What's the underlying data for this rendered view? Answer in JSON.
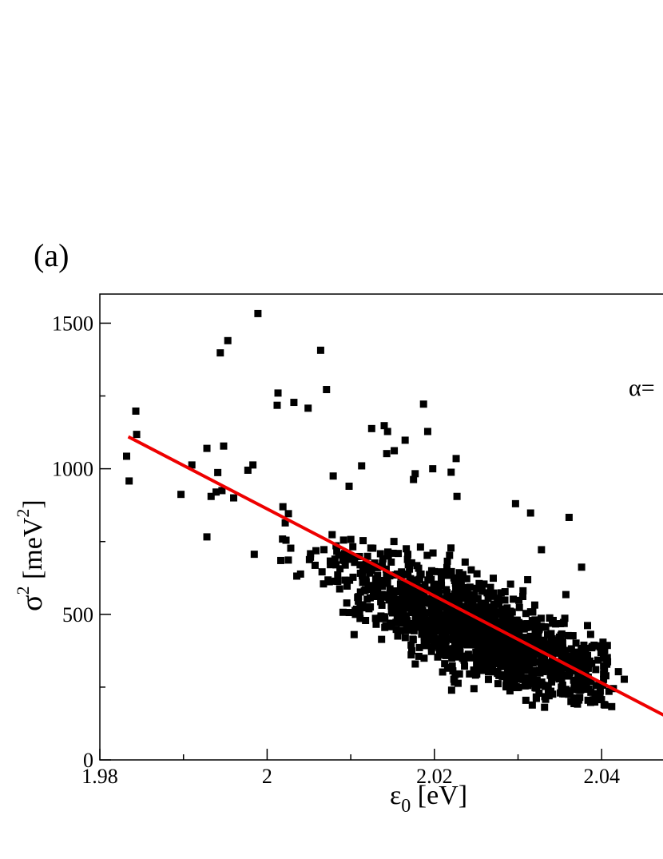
{
  "chart_data": {
    "type": "scatter",
    "panel_label": "(a)",
    "annotation": "α=",
    "xlabel": {
      "base": "ε",
      "sub": "0",
      "rest": " [eV]"
    },
    "ylabel": {
      "base": "σ",
      "sup": "2",
      "rest": " [meV",
      "unit_sup": "2",
      "close": "]"
    },
    "xlim": [
      1.98,
      2.048
    ],
    "ylim": [
      0,
      1600
    ],
    "xticks": [
      {
        "value": 1.98,
        "label": "1.98"
      },
      {
        "value": 2.0,
        "label": "2"
      },
      {
        "value": 2.02,
        "label": "2.02"
      },
      {
        "value": 2.04,
        "label": "2.04"
      }
    ],
    "yticks": [
      {
        "value": 0,
        "label": "0"
      },
      {
        "value": 500,
        "label": "500"
      },
      {
        "value": 1000,
        "label": "1000"
      },
      {
        "value": 1500,
        "label": "1500"
      }
    ],
    "fit_line": {
      "color": "#ee0000",
      "x": [
        1.9834,
        2.048
      ],
      "y": [
        1110,
        145
      ]
    },
    "marker_color": "#000000",
    "outliers": [
      [
        1.9989,
        1533
      ],
      [
        1.9953,
        1440
      ],
      [
        1.9944,
        1398
      ],
      [
        2.0064,
        1407
      ],
      [
        2.0071,
        1272
      ],
      [
        2.0013,
        1260
      ],
      [
        2.0032,
        1228
      ],
      [
        2.0012,
        1218
      ],
      [
        2.0049,
        1208
      ],
      [
        2.0187,
        1222
      ],
      [
        2.014,
        1148
      ],
      [
        2.0125,
        1138
      ],
      [
        2.0144,
        1128
      ],
      [
        2.0192,
        1128
      ],
      [
        2.0143,
        1052
      ],
      [
        2.0152,
        1062
      ],
      [
        2.0165,
        1098
      ],
      [
        1.9843,
        1198
      ],
      [
        1.9844,
        1118
      ],
      [
        1.9832,
        1043
      ],
      [
        1.9835,
        958
      ],
      [
        1.9928,
        1070
      ],
      [
        1.9948,
        1078
      ],
      [
        1.9983,
        1013
      ],
      [
        1.9977,
        995
      ],
      [
        1.991,
        1013
      ],
      [
        1.9897,
        912
      ],
      [
        1.9941,
        987
      ],
      [
        1.9933,
        905
      ],
      [
        1.9946,
        925
      ],
      [
        1.9939,
        920
      ],
      [
        1.996,
        900
      ],
      [
        1.9928,
        766
      ],
      [
        2.0113,
        1010
      ],
      [
        2.0198,
        1000
      ],
      [
        2.0226,
        1035
      ],
      [
        2.0177,
        983
      ],
      [
        2.0175,
        963
      ],
      [
        2.0227,
        905
      ],
      [
        2.022,
        988
      ],
      [
        2.0297,
        880
      ],
      [
        2.0315,
        848
      ],
      [
        2.0361,
        833
      ],
      [
        2.0328,
        722
      ],
      [
        2.0376,
        662
      ],
      [
        2.0412,
        183
      ],
      [
        2.0427,
        277
      ],
      [
        2.042,
        303
      ],
      [
        2.0414,
        245
      ],
      [
        2.0398,
        217
      ],
      [
        2.0392,
        228
      ],
      [
        2.0098,
        940
      ],
      [
        2.0079,
        975
      ]
    ],
    "cluster": {
      "count": 1500,
      "seed": 7,
      "x_range": [
        1.998,
        2.041
      ],
      "trend": {
        "x0": 2.0,
        "y0": 740,
        "slope_per_eV": -11800
      },
      "y_spread": 80
    }
  }
}
